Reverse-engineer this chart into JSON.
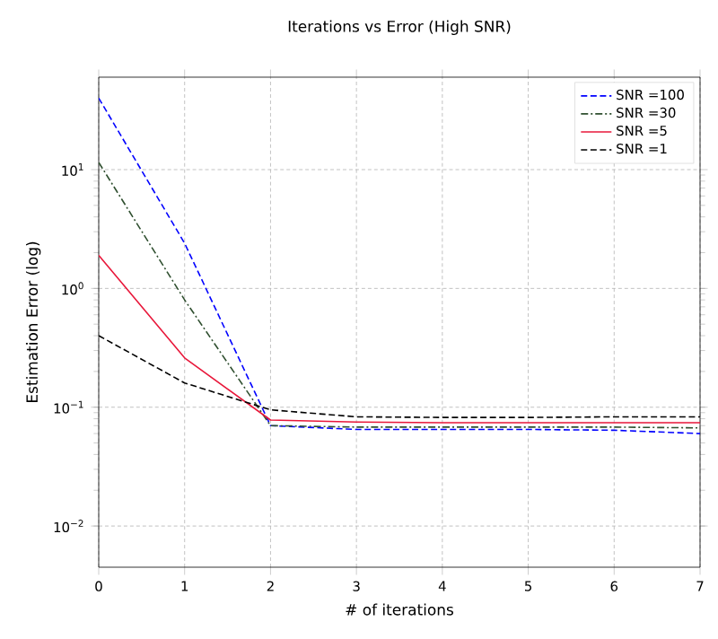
{
  "chart_data": {
    "type": "line",
    "title": "Iterations vs Error (High SNR)",
    "xlabel": "# of iterations",
    "ylabel": "Estimation Error (log)",
    "x": [
      0,
      1,
      2,
      3,
      4,
      5,
      6,
      7
    ],
    "series": [
      {
        "name": "SNR =100",
        "color": "#0000ff",
        "line_style": "dashed",
        "values": [
          40,
          2.4,
          0.07,
          0.065,
          0.065,
          0.065,
          0.064,
          0.06
        ]
      },
      {
        "name": "SNR =30",
        "color": "#2f4f2f",
        "line_style": "dashdot",
        "values": [
          11.5,
          0.8,
          0.07,
          0.068,
          0.068,
          0.068,
          0.068,
          0.067
        ]
      },
      {
        "name": "SNR =5",
        "color": "#e8173a",
        "line_style": "solid",
        "values": [
          1.9,
          0.26,
          0.078,
          0.075,
          0.074,
          0.074,
          0.074,
          0.074
        ]
      },
      {
        "name": "SNR =1",
        "color": "#000000",
        "line_style": "dashed",
        "values": [
          0.4,
          0.16,
          0.095,
          0.083,
          0.082,
          0.082,
          0.083,
          0.083
        ]
      }
    ],
    "log": "y",
    "grid": true,
    "legend": "top right",
    "marker": "none",
    "xlim": [
      0,
      7
    ],
    "ylim": [
      0.0045,
      60
    ],
    "xticks": [
      0,
      1,
      2,
      3,
      4,
      5,
      6,
      7
    ],
    "yticks": [
      {
        "value": 0.01,
        "label": "10$^{−2}$"
      },
      {
        "value": 0.1,
        "label": "10$^{−1}$"
      },
      {
        "value": 1,
        "label": "10$^{0}$"
      },
      {
        "value": 10,
        "label": "10$^{1}$"
      }
    ]
  }
}
